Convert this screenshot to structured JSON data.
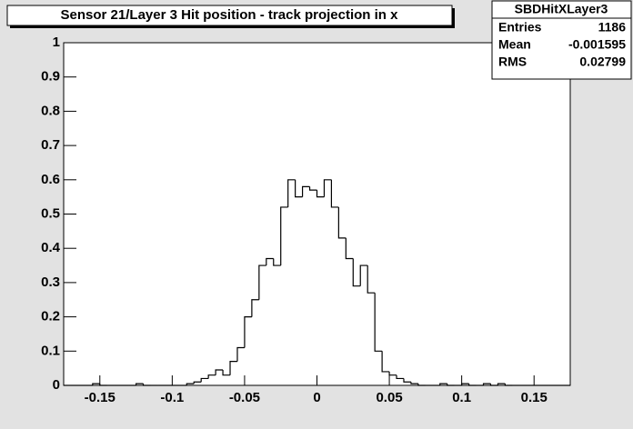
{
  "chart_data": {
    "type": "histogram",
    "title": "Sensor 21/Layer 3 Hit position - track projection in x",
    "stats": {
      "name": "SBDHitXLayer3",
      "rows": [
        [
          "Entries",
          "1186"
        ],
        [
          "Mean",
          "-0.001595"
        ],
        [
          "RMS",
          "0.02799"
        ]
      ]
    },
    "bins": [
      -0.175,
      -0.17,
      -0.165,
      -0.16,
      -0.155,
      -0.15,
      -0.145,
      -0.14,
      -0.135,
      -0.13,
      -0.125,
      -0.12,
      -0.115,
      -0.11,
      -0.105,
      -0.1,
      -0.095,
      -0.09,
      -0.085,
      -0.08,
      -0.075,
      -0.07,
      -0.065,
      -0.06,
      -0.055,
      -0.05,
      -0.045,
      -0.04,
      -0.035,
      -0.03,
      -0.025,
      -0.02,
      -0.015,
      -0.01,
      -0.005,
      0,
      0.005,
      0.01,
      0.015,
      0.02,
      0.025,
      0.03,
      0.035,
      0.04,
      0.045,
      0.05,
      0.055,
      0.06,
      0.065,
      0.07,
      0.075,
      0.08,
      0.085,
      0.09,
      0.095,
      0.1,
      0.105,
      0.11,
      0.115,
      0.12,
      0.125,
      0.13,
      0.135,
      0.14,
      0.145,
      0.15,
      0.155,
      0.16,
      0.165,
      0.17,
      0.175
    ],
    "values": [
      0,
      0,
      0,
      0,
      0.005,
      0,
      0,
      0,
      0,
      0,
      0.005,
      0,
      0,
      0,
      0,
      0,
      0,
      0.005,
      0.01,
      0.02,
      0.03,
      0.045,
      0.03,
      0.07,
      0.11,
      0.2,
      0.25,
      0.35,
      0.37,
      0.35,
      0.52,
      0.6,
      0.55,
      0.58,
      0.57,
      0.55,
      0.6,
      0.52,
      0.43,
      0.37,
      0.29,
      0.35,
      0.27,
      0.1,
      0.04,
      0.03,
      0.02,
      0.01,
      0.005,
      0,
      0,
      0,
      0.005,
      0,
      0,
      0.005,
      0,
      0,
      0.005,
      0,
      0.005,
      0,
      0,
      0,
      0,
      0,
      0,
      0,
      0,
      0
    ],
    "color": "#000000",
    "xlim": [
      -0.175,
      0.175
    ],
    "ylim": [
      0,
      1
    ],
    "xticks": [
      -0.15,
      -0.1,
      -0.05,
      0,
      0.05,
      0.1,
      0.15
    ],
    "yticks": [
      0,
      0.1,
      0.2,
      0.3,
      0.4,
      0.5,
      0.6,
      0.7,
      0.8,
      0.9,
      1
    ]
  }
}
